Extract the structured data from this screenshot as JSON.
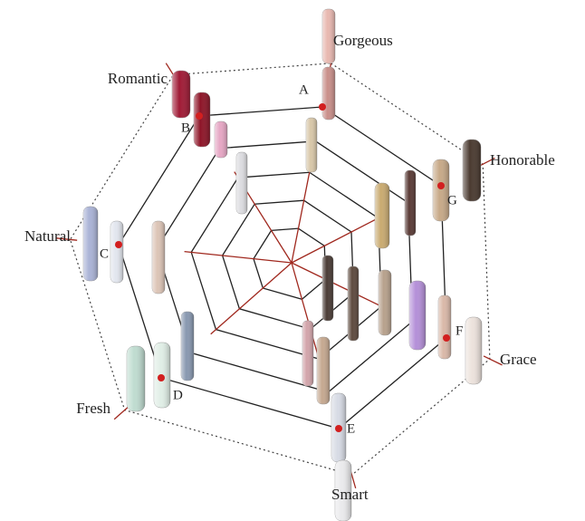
{
  "axes": [
    {
      "label": "Gorgeous",
      "point": "A"
    },
    {
      "label": "Honorable",
      "point": "G"
    },
    {
      "label": "Grace",
      "point": "F"
    },
    {
      "label": "Smart",
      "point": "E"
    },
    {
      "label": "Fresh",
      "point": "D"
    },
    {
      "label": "Natural",
      "point": "C"
    },
    {
      "label": "Romantic",
      "point": "B"
    }
  ]
}
